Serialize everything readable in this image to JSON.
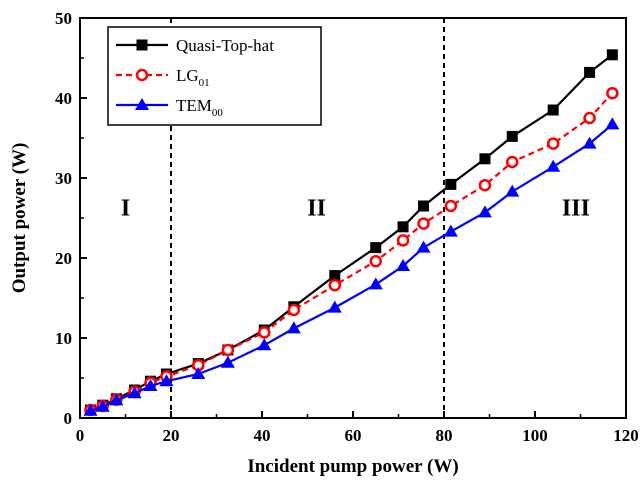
{
  "chart_data": {
    "type": "line",
    "xlabel": "Incident pump power (W)",
    "ylabel": "Output power (W)",
    "xlim": [
      0,
      120
    ],
    "ylim": [
      0,
      50
    ],
    "xticks": [
      "0",
      "20",
      "40",
      "60",
      "80",
      "100",
      "120"
    ],
    "yticks": [
      "0",
      "10",
      "20",
      "30",
      "40",
      "50"
    ],
    "grid": false,
    "legend_position": "top-left",
    "vlines": [
      20,
      80
    ],
    "regions": [
      {
        "label": "I",
        "x": 10,
        "y": 25.3
      },
      {
        "label": "II",
        "x": 52,
        "y": 25.3
      },
      {
        "label": "III",
        "x": 109,
        "y": 25.3
      }
    ],
    "series": [
      {
        "name": "Quasi-Top-hat",
        "legend_main": "Quasi-Top-hat",
        "legend_sub": "",
        "color": "#000000",
        "marker": "square",
        "line": "solid",
        "x": [
          2.3,
          5,
          8,
          12,
          15.5,
          19,
          26,
          32.5,
          40.5,
          47,
          56,
          65,
          71,
          75.5,
          81.5,
          89,
          95,
          104,
          112,
          117
        ],
        "y": [
          1.0,
          1.6,
          2.4,
          3.5,
          4.6,
          5.5,
          6.8,
          8.5,
          11.0,
          13.9,
          17.8,
          21.3,
          23.9,
          26.5,
          29.2,
          32.4,
          35.2,
          38.5,
          43.2,
          45.4
        ]
      },
      {
        "name": "LG01",
        "legend_main": "LG",
        "legend_sub": "01",
        "color": "#ff0000",
        "marker": "circle",
        "line": "dashed",
        "x": [
          2.3,
          5,
          8,
          12,
          15.5,
          19,
          26,
          32.5,
          40.5,
          47,
          56,
          65,
          71,
          75.5,
          81.5,
          89,
          95,
          104,
          112,
          117
        ],
        "y": [
          1.0,
          1.5,
          2.3,
          3.3,
          4.4,
          5.2,
          6.6,
          8.5,
          10.7,
          13.5,
          16.6,
          19.6,
          22.2,
          24.3,
          26.5,
          29.1,
          32.0,
          34.3,
          37.5,
          40.6
        ]
      },
      {
        "name": "TEM00",
        "legend_main": "TEM",
        "legend_sub": "00",
        "color": "#0000ff",
        "marker": "triangle",
        "line": "solid",
        "x": [
          2.3,
          5,
          8,
          12,
          15.5,
          19,
          26,
          32.5,
          40.5,
          47,
          56,
          65,
          71,
          75.5,
          81.5,
          89,
          95,
          104,
          112,
          117
        ],
        "y": [
          0.9,
          1.4,
          2.2,
          3.1,
          4.0,
          4.6,
          5.5,
          6.9,
          9.1,
          11.2,
          13.8,
          16.7,
          19.0,
          21.3,
          23.3,
          25.7,
          28.3,
          31.4,
          34.3,
          36.7
        ]
      }
    ]
  }
}
